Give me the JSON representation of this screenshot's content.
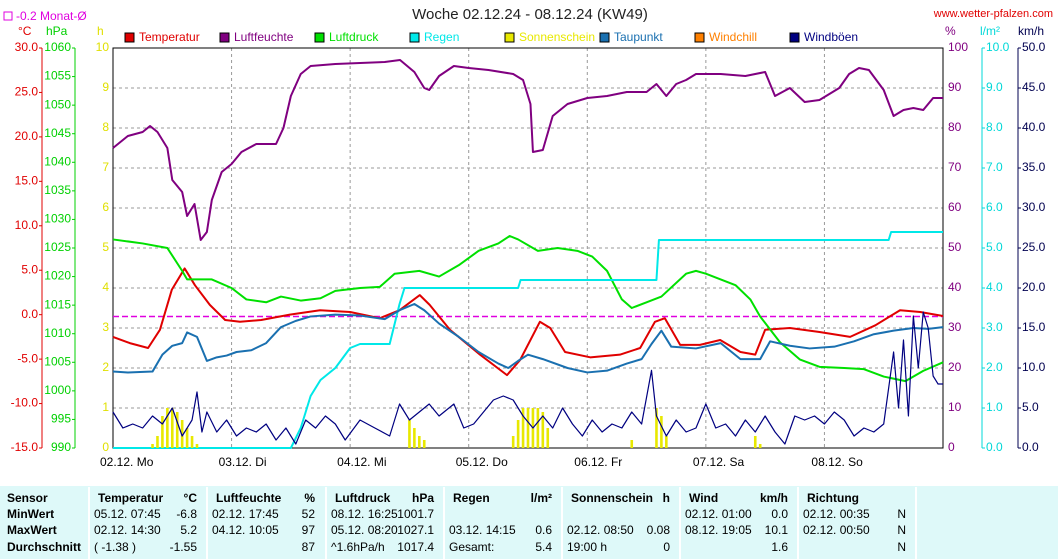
{
  "chart_data": {
    "type": "line",
    "title": "Woche 02.12.24 - 08.12.24 (KW49)",
    "source": "www.wetter-pfalzen.com",
    "monthly_mean": {
      "label": "-0.2 Monat-Ø",
      "value": -0.2,
      "color": "#e000e0"
    },
    "xlim": [
      0,
      168
    ],
    "xticks": [
      {
        "value": 0,
        "label": "02.12. Mo"
      },
      {
        "value": 24,
        "label": "03.12. Di"
      },
      {
        "value": 48,
        "label": "04.12. Mi"
      },
      {
        "value": 72,
        "label": "05.12. Do"
      },
      {
        "value": 96,
        "label": "06.12. Fr"
      },
      {
        "value": 120,
        "label": "07.12. Sa"
      },
      {
        "value": 144,
        "label": "08.12. So"
      }
    ],
    "grid": true,
    "yunit": "°C",
    "ycolor": "#e00000",
    "ylim": [
      -15,
      30
    ],
    "yticks": [
      {
        "value": -15,
        "label": "-15.0"
      },
      {
        "value": -10,
        "label": "-10.0"
      },
      {
        "value": -5,
        "label": "-5.0"
      },
      {
        "value": 0,
        "label": "0.0"
      },
      {
        "value": 5,
        "label": "5.0"
      },
      {
        "value": 10,
        "label": "10.0"
      },
      {
        "value": 15,
        "label": "15.0"
      },
      {
        "value": 20,
        "label": "20.0"
      },
      {
        "value": 25,
        "label": "25.0"
      },
      {
        "value": 30,
        "label": "30.0"
      }
    ],
    "y2unit": "hPa",
    "y2color": "#00d000",
    "y2lim": [
      990,
      1060
    ],
    "y2ticks": [
      990,
      995,
      1000,
      1005,
      1010,
      1015,
      1020,
      1025,
      1030,
      1035,
      1040,
      1045,
      1050,
      1055,
      1060
    ],
    "y3unit": "h",
    "y3color": "#e0e000",
    "y3lim": [
      0,
      10
    ],
    "y3ticks": [
      0,
      1,
      2,
      3,
      4,
      5,
      6,
      7,
      8,
      9,
      10
    ],
    "y4unit": "%",
    "y4color": "#800080",
    "y4lim": [
      0,
      100
    ],
    "y4ticks": [
      0,
      10,
      20,
      30,
      40,
      50,
      60,
      70,
      80,
      90,
      100
    ],
    "y5unit": "l/m²",
    "y5color": "#00d8d8",
    "y5lim": [
      0,
      10
    ],
    "y5ticks": [
      {
        "value": 0,
        "label": "0.0"
      },
      {
        "value": 1,
        "label": "1.0"
      },
      {
        "value": 2,
        "label": "2.0"
      },
      {
        "value": 3,
        "label": "3.0"
      },
      {
        "value": 4,
        "label": "4.0"
      },
      {
        "value": 5,
        "label": "5.0"
      },
      {
        "value": 6,
        "label": "6.0"
      },
      {
        "value": 7,
        "label": "7.0"
      },
      {
        "value": 8,
        "label": "8.0"
      },
      {
        "value": 9,
        "label": "9.0"
      },
      {
        "value": 10,
        "label": "10.0"
      }
    ],
    "y6unit": "km/h",
    "y6color": "#000050",
    "y6lim": [
      0,
      50
    ],
    "y6ticks": [
      {
        "value": 0,
        "label": "0.0"
      },
      {
        "value": 5,
        "label": "5.0"
      },
      {
        "value": 10,
        "label": "10.0"
      },
      {
        "value": 15,
        "label": "15.0"
      },
      {
        "value": 20,
        "label": "20.0"
      },
      {
        "value": 25,
        "label": "25.0"
      },
      {
        "value": 30,
        "label": "30.0"
      },
      {
        "value": 35,
        "label": "35.0"
      },
      {
        "value": 40,
        "label": "40.0"
      },
      {
        "value": 45,
        "label": "45.0"
      },
      {
        "value": 50,
        "label": "50.0"
      }
    ],
    "series": [
      {
        "name": "Temperatur",
        "color": "#e00000",
        "axis": "y",
        "x": [
          0,
          3.4,
          7.1,
          9.5,
          11.9,
          14.5,
          16.6,
          19.6,
          22.7,
          25.7,
          30,
          35.8,
          41.9,
          48,
          54,
          58,
          62.1,
          64.1,
          68.2,
          74.3,
          79.75,
          82.4,
          86.4,
          88.5,
          91.5,
          96.6,
          102.6,
          106.7,
          109.7,
          111.7,
          114.8,
          118.8,
          122.9,
          127,
          130,
          132,
          137,
          143,
          149.2,
          154.3,
          159.3,
          163.4,
          168
        ],
        "values": [
          -2.5,
          -3.2,
          -3.75,
          -1.7,
          2.8,
          5.2,
          3.3,
          1.1,
          -0.6,
          -0.8,
          -0.6,
          0,
          0.5,
          0.3,
          -0.4,
          0.5,
          2.2,
          1.1,
          -1.7,
          -4.5,
          -6.8,
          -5.1,
          -0.8,
          -1.5,
          -4.2,
          -4.8,
          -4.5,
          -3.75,
          -0.8,
          -0.4,
          -3.4,
          -3.4,
          -2.85,
          -4.2,
          -4.5,
          -1.7,
          -1.5,
          -1.95,
          -2.5,
          -1.2,
          0.5,
          0.3,
          -0.15
        ]
      },
      {
        "name": "Luftfeuchte",
        "color": "#800080",
        "axis": "y4",
        "x": [
          0,
          3,
          6,
          7.5,
          9,
          11,
          12,
          14,
          15,
          16.5,
          17.75,
          19,
          20,
          22,
          24,
          26,
          29,
          33,
          34.5,
          36,
          38,
          40,
          45,
          55,
          58.1,
          61,
          63,
          64,
          66,
          69,
          72,
          76,
          81,
          83,
          84.5,
          85,
          87,
          89,
          92,
          96,
          100,
          104,
          108,
          110,
          112,
          114,
          116,
          118,
          123,
          128,
          132,
          134,
          137,
          140,
          143,
          147,
          149,
          151,
          153,
          156,
          158,
          160,
          162,
          164,
          166,
          168
        ],
        "values": [
          75,
          78,
          79,
          80.5,
          79,
          75,
          67,
          64,
          58,
          61,
          52,
          54,
          62,
          69,
          71,
          74,
          76,
          76,
          80,
          88,
          93.5,
          95.5,
          96,
          96.5,
          97,
          94,
          90,
          89.5,
          93,
          95.5,
          95,
          94.5,
          93.5,
          92,
          86,
          74,
          74.5,
          83,
          86,
          87.5,
          88,
          89,
          89,
          91,
          88,
          91,
          92,
          93.5,
          93.5,
          93,
          94,
          88,
          90,
          86.5,
          87,
          90,
          93.5,
          95,
          94.5,
          89.5,
          83,
          84.5,
          85,
          84.5,
          87.5,
          87.5
        ]
      },
      {
        "name": "Luftdruck",
        "color": "#00e000",
        "axis": "y2",
        "x": [
          0,
          6,
          11,
          14,
          15,
          20,
          24,
          27,
          31,
          34,
          38,
          42,
          45,
          50,
          54,
          57,
          62,
          66,
          70,
          74,
          78,
          80.3,
          82,
          86,
          90,
          94,
          97,
          100,
          103,
          105,
          108,
          111,
          116,
          118,
          120,
          126,
          129,
          131,
          135,
          139,
          143,
          148,
          152,
          156,
          160.4,
          164,
          168
        ],
        "values": [
          1026.5,
          1025.8,
          1025,
          1021,
          1019.5,
          1019.5,
          1018,
          1016,
          1015.5,
          1016.5,
          1015.8,
          1016.2,
          1017.5,
          1018,
          1018.2,
          1020.5,
          1021,
          1020,
          1022,
          1024.5,
          1025.8,
          1027.1,
          1026.5,
          1024.5,
          1025,
          1024.5,
          1023.5,
          1021,
          1016,
          1014.5,
          1015.5,
          1016.5,
          1020.5,
          1021,
          1020.5,
          1018.5,
          1016,
          1013,
          1008.5,
          1005.5,
          1004.2,
          1004,
          1003.8,
          1002.5,
          1001.7,
          1003.5,
          1005
        ]
      },
      {
        "name": "Regen",
        "color": "#00e8e8",
        "axis": "y5",
        "x": [
          0,
          36,
          38,
          40,
          42,
          45,
          48,
          50,
          56,
          58,
          59,
          82,
          82.5,
          110,
          110.5,
          157,
          157.5,
          168
        ],
        "values": [
          0,
          0,
          0.5,
          1.3,
          1.7,
          2,
          2.5,
          2.6,
          2.6,
          3.6,
          4,
          4,
          4.2,
          4.2,
          5.2,
          5.2,
          5.4,
          5.4
        ]
      },
      {
        "name": "Sonnenschein",
        "color": "#e8e800",
        "axis": "y3",
        "type": "bar",
        "x": [
          8,
          9,
          10,
          11,
          12,
          13,
          14,
          15,
          16,
          17,
          60,
          61,
          62,
          63,
          81,
          82,
          83,
          84,
          85,
          86,
          87,
          88,
          105,
          110,
          111,
          112,
          130,
          131
        ],
        "values": [
          0.1,
          0.3,
          0.8,
          1,
          1,
          0.9,
          0.7,
          0.5,
          0.3,
          0.1,
          0.7,
          0.5,
          0.3,
          0.2,
          0.3,
          0.7,
          1,
          1,
          1,
          1,
          0.9,
          0.5,
          0.2,
          1,
          0.8,
          0.3,
          0.3,
          0.1
        ]
      },
      {
        "name": "Taupunkt",
        "color": "#1a70b0",
        "axis": "y",
        "x": [
          0,
          3,
          8,
          10,
          12,
          14,
          15,
          17,
          19,
          21,
          23,
          25,
          28,
          31,
          34,
          37,
          40,
          45,
          50,
          55,
          58,
          61,
          63,
          66,
          70,
          74,
          78,
          80,
          82,
          84,
          87,
          92,
          96,
          100,
          104,
          107,
          109,
          111,
          113,
          118,
          123,
          127,
          131,
          133,
          137,
          141,
          146,
          150,
          154,
          158,
          162,
          165,
          168
        ],
        "values": [
          -6.4,
          -6.5,
          -6.4,
          -4.5,
          -3.5,
          -3.2,
          -2,
          -2.5,
          -5.2,
          -4.8,
          -4.6,
          -4.2,
          -4,
          -3.2,
          -1.4,
          -0.7,
          -0.2,
          0,
          -0.1,
          -0.5,
          0.5,
          1.2,
          0.5,
          -1,
          -2.5,
          -4.2,
          -5.5,
          -6,
          -5.2,
          -4.5,
          -5,
          -6,
          -6.5,
          -6.3,
          -5.5,
          -5,
          -3.3,
          -1.8,
          -3.6,
          -3.8,
          -3.2,
          -5,
          -5,
          -3,
          -3.5,
          -3.8,
          -3.6,
          -3,
          -2.2,
          -1.8,
          -1.5,
          -1.6,
          -1.4
        ]
      },
      {
        "name": "Windchill",
        "color": "#ff8000",
        "axis": "y"
      },
      {
        "name": "Windböen",
        "color": "#000080",
        "axis": "y6",
        "x": [
          0,
          2,
          4,
          6,
          8,
          10,
          12,
          14,
          16,
          17,
          18,
          19,
          21,
          23,
          25,
          27,
          29,
          31,
          33,
          35,
          37,
          39,
          41,
          43,
          45,
          47,
          50,
          53,
          56,
          58,
          60,
          62,
          64,
          66,
          69,
          71,
          73,
          75,
          77,
          79,
          81,
          83,
          85,
          87,
          89,
          91,
          93,
          95,
          97,
          99,
          101,
          103,
          105,
          107,
          109,
          110,
          112,
          114,
          116,
          118,
          120,
          122,
          124,
          126,
          128,
          130,
          132,
          134,
          136,
          138,
          140,
          142,
          144,
          146,
          148,
          150,
          152,
          154,
          156,
          158,
          159,
          160,
          161,
          162,
          163,
          164,
          165,
          166,
          167,
          168
        ],
        "values": [
          4.5,
          2.5,
          3,
          2.5,
          4,
          3,
          5,
          1.5,
          3.5,
          7,
          2,
          4.5,
          2,
          3.5,
          1.5,
          2.5,
          2,
          3,
          1,
          2.5,
          0.5,
          3.5,
          2.5,
          4,
          3,
          1,
          3.5,
          2.5,
          1.5,
          5.5,
          3.5,
          4.5,
          5.5,
          4,
          5.5,
          2.5,
          3,
          4.5,
          6,
          6.5,
          6,
          4,
          2.5,
          4,
          2.5,
          5,
          3,
          1.5,
          3.5,
          2,
          3,
          2.5,
          4.5,
          3,
          9.7,
          4,
          1.5,
          3.5,
          2,
          2.5,
          5.5,
          2.5,
          3,
          1.5,
          3.5,
          2,
          4,
          2,
          0.5,
          4,
          3.5,
          4,
          3,
          4.5,
          3.5,
          1.5,
          2.5,
          2,
          3,
          12,
          5,
          13.5,
          4,
          16.5,
          10,
          17,
          15,
          9,
          8,
          8
        ]
      }
    ]
  },
  "table": {
    "columns": [
      {
        "title": "Sensor"
      },
      {
        "title": "Temperatur",
        "unit": "°C"
      },
      {
        "title": "Luftfeuchte",
        "unit": "%"
      },
      {
        "title": "Luftdruck",
        "unit": "hPa"
      },
      {
        "title": "Regen",
        "unit": "l/m²"
      },
      {
        "title": "Sonnenschein",
        "unit": "h"
      },
      {
        "title": "Wind",
        "unit": "km/h"
      },
      {
        "title": "Richtung"
      }
    ],
    "rows": [
      {
        "label": "MinWert",
        "cells": [
          [
            "05.12. 07:45",
            "-6.8"
          ],
          [
            "02.12. 17:45",
            "52"
          ],
          [
            "08.12. 16:25",
            "1001.7"
          ],
          [
            null,
            null
          ],
          [
            null,
            null
          ],
          [
            "02.12. 01:00",
            "0.0"
          ],
          [
            "02.12. 00:35",
            "N"
          ]
        ]
      },
      {
        "label": "MaxWert",
        "cells": [
          [
            "02.12. 14:30",
            "5.2"
          ],
          [
            "04.12. 10:05",
            "97"
          ],
          [
            "05.12. 08:20",
            "1027.1"
          ],
          [
            "03.12. 14:15",
            "0.6"
          ],
          [
            "02.12. 08:50",
            "0.08"
          ],
          [
            "08.12. 19:05",
            "10.1"
          ],
          [
            "02.12. 00:50",
            "N"
          ]
        ]
      },
      {
        "label": "Durchschnitt",
        "cells": [
          [
            "( -1.38 )",
            "-1.55"
          ],
          [
            null,
            "87"
          ],
          [
            "^1.6hPa/h",
            "1017.4"
          ],
          [
            "Gesamt:",
            "5.4"
          ],
          [
            "19:00 h",
            "0"
          ],
          [
            null,
            "1.6"
          ],
          [
            null,
            "N"
          ]
        ]
      }
    ]
  }
}
